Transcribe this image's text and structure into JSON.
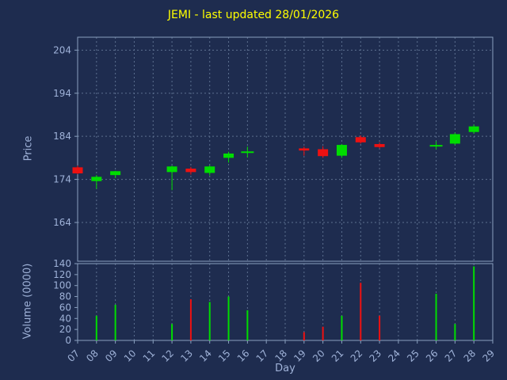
{
  "title": "JEMI - last updated 28/01/2026",
  "colors": {
    "background": "#1e2c4f",
    "title": "#ffff00",
    "text": "#9fb2d8",
    "grid": "#5c6f8f",
    "frame": "#8aa0bf",
    "up": "#00dd00",
    "down": "#ee1111"
  },
  "axes": {
    "price": {
      "label": "Price",
      "ticks": [
        204,
        194,
        184,
        174,
        164
      ],
      "range": [
        155,
        207
      ]
    },
    "volume": {
      "label": "Volume (0000)",
      "ticks": [
        140,
        120,
        100,
        80,
        60,
        40,
        20,
        0
      ],
      "range": [
        0,
        140
      ]
    },
    "x": {
      "label": "Day",
      "ticks": [
        "07",
        "08",
        "09",
        "10",
        "11",
        "12",
        "13",
        "14",
        "15",
        "16",
        "17",
        "18",
        "19",
        "20",
        "21",
        "22",
        "23",
        "24",
        "25",
        "26",
        "27",
        "28",
        "29"
      ],
      "range": [
        7,
        29
      ]
    }
  },
  "chart_data": [
    {
      "type": "candlestick",
      "title": "JEMI - last updated 28/01/2026",
      "xlabel": "Day",
      "ylabel": "Price",
      "ylim": [
        155,
        207
      ],
      "grid": true,
      "candles": [
        {
          "day": 7,
          "open": 176.8,
          "high": 177.2,
          "low": 175.2,
          "close": 175.4,
          "direction": "down"
        },
        {
          "day": 8,
          "open": 173.6,
          "high": 175.0,
          "low": 171.8,
          "close": 174.6,
          "direction": "up"
        },
        {
          "day": 9,
          "open": 175.0,
          "high": 176.0,
          "low": 174.3,
          "close": 175.9,
          "direction": "up"
        },
        {
          "day": 12,
          "open": 175.7,
          "high": 177.2,
          "low": 171.5,
          "close": 177.0,
          "direction": "up"
        },
        {
          "day": 13,
          "open": 176.5,
          "high": 176.9,
          "low": 175.1,
          "close": 175.7,
          "direction": "down"
        },
        {
          "day": 14,
          "open": 175.5,
          "high": 177.3,
          "low": 174.9,
          "close": 177.0,
          "direction": "up"
        },
        {
          "day": 15,
          "open": 179.0,
          "high": 180.4,
          "low": 177.9,
          "close": 180.0,
          "direction": "up"
        },
        {
          "day": 16,
          "open": 180.3,
          "high": 181.6,
          "low": 179.1,
          "close": 180.3,
          "direction": "up-doji"
        },
        {
          "day": 19,
          "open": 181.2,
          "high": 181.6,
          "low": 179.5,
          "close": 180.7,
          "direction": "down"
        },
        {
          "day": 20,
          "open": 181.0,
          "high": 181.7,
          "low": 179.0,
          "close": 179.4,
          "direction": "down"
        },
        {
          "day": 21,
          "open": 179.5,
          "high": 182.2,
          "low": 179.0,
          "close": 182.0,
          "direction": "up"
        },
        {
          "day": 22,
          "open": 183.8,
          "high": 184.2,
          "low": 182.3,
          "close": 182.6,
          "direction": "down"
        },
        {
          "day": 23,
          "open": 182.2,
          "high": 182.6,
          "low": 181.2,
          "close": 181.5,
          "direction": "down"
        },
        {
          "day": 26,
          "open": 181.8,
          "high": 182.8,
          "low": 181.0,
          "close": 181.8,
          "direction": "up-doji"
        },
        {
          "day": 27,
          "open": 182.3,
          "high": 184.8,
          "low": 182.0,
          "close": 184.5,
          "direction": "up"
        },
        {
          "day": 28,
          "open": 185.0,
          "high": 186.7,
          "low": 184.6,
          "close": 186.3,
          "direction": "up"
        }
      ]
    },
    {
      "type": "bar",
      "xlabel": "Day",
      "ylabel": "Volume (0000)",
      "ylim": [
        0,
        140
      ],
      "bars": [
        {
          "day": 8,
          "value": 45,
          "direction": "up"
        },
        {
          "day": 9,
          "value": 65,
          "direction": "up"
        },
        {
          "day": 12,
          "value": 30,
          "direction": "up"
        },
        {
          "day": 13,
          "value": 75,
          "direction": "down"
        },
        {
          "day": 14,
          "value": 70,
          "direction": "up"
        },
        {
          "day": 15,
          "value": 80,
          "direction": "up"
        },
        {
          "day": 16,
          "value": 55,
          "direction": "up"
        },
        {
          "day": 19,
          "value": 15,
          "direction": "down"
        },
        {
          "day": 20,
          "value": 25,
          "direction": "down"
        },
        {
          "day": 21,
          "value": 45,
          "direction": "up"
        },
        {
          "day": 22,
          "value": 105,
          "direction": "down"
        },
        {
          "day": 23,
          "value": 45,
          "direction": "down"
        },
        {
          "day": 26,
          "value": 85,
          "direction": "up"
        },
        {
          "day": 27,
          "value": 30,
          "direction": "up"
        },
        {
          "day": 28,
          "value": 135,
          "direction": "up"
        }
      ]
    }
  ]
}
